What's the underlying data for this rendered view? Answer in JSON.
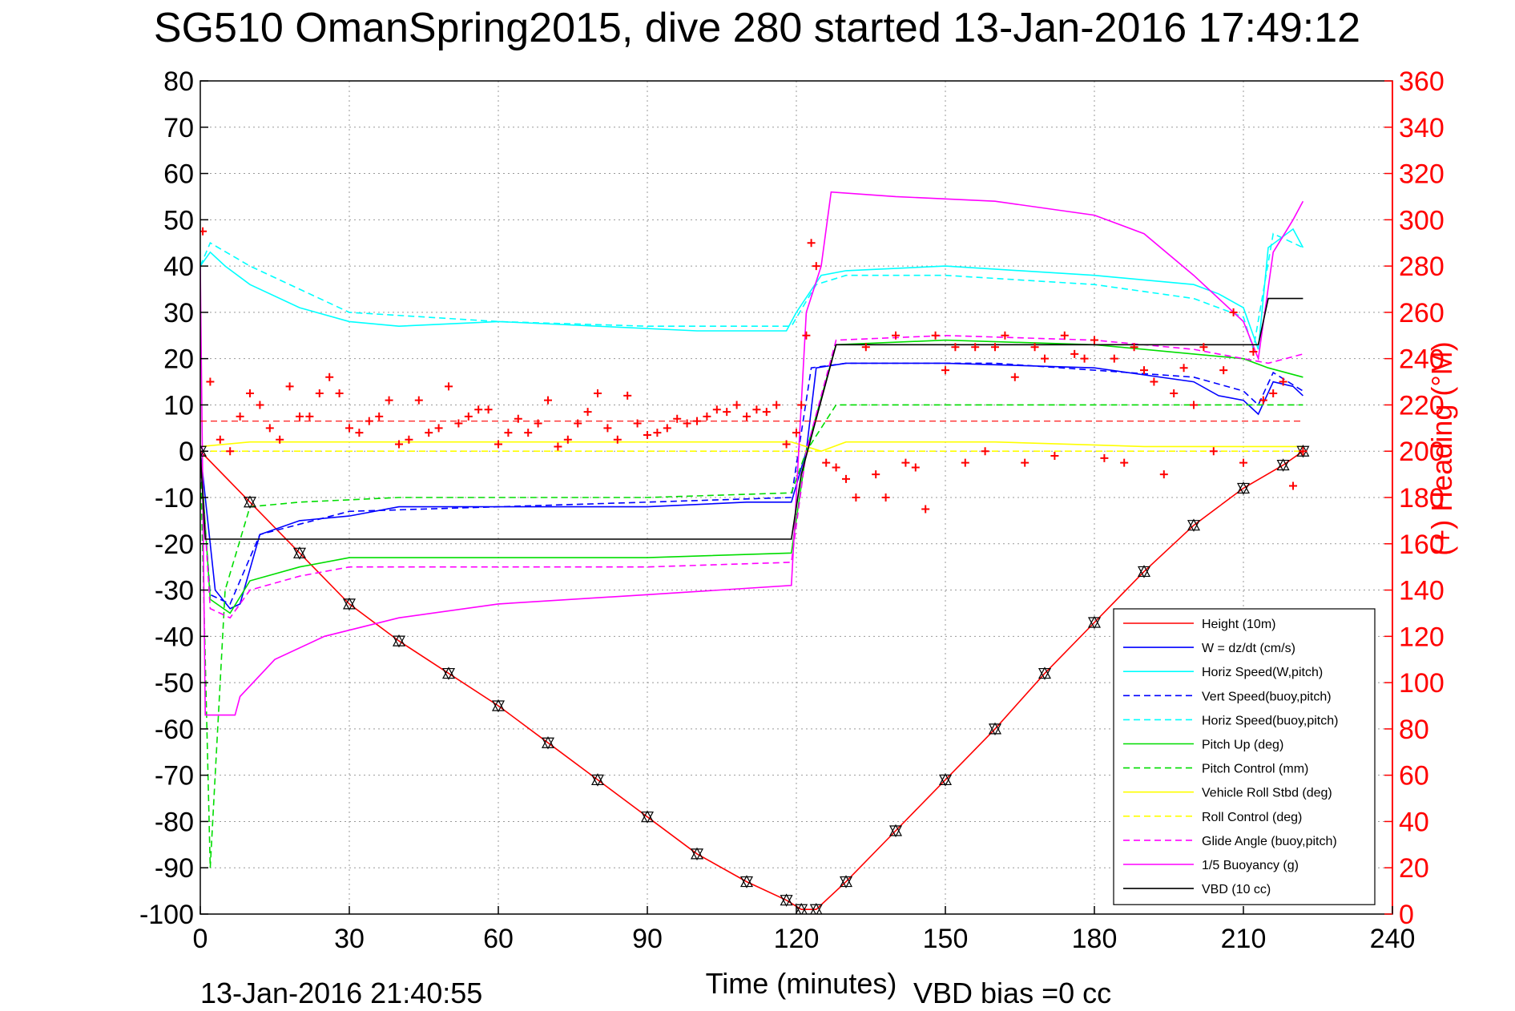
{
  "figure": {
    "title": "SG510 OmanSpring2015, dive 280 started 13-Jan-2016 17:49:12",
    "timestamp": "13-Jan-2016 21:40:55",
    "vbd_bias": "VBD bias =0 cc"
  },
  "chart_data": {
    "type": "line",
    "title": "SG510 OmanSpring2015, dive 280 started 13-Jan-2016 17:49:12",
    "xlabel": "Time (minutes)",
    "ylabel": "",
    "y2label": "(+) Heading (°M)",
    "xlim": [
      0,
      240
    ],
    "ylim": [
      -100,
      80
    ],
    "y2lim": [
      0,
      360
    ],
    "grid": true,
    "legend_position": "bottom-right",
    "x_ticks": [
      0,
      30,
      60,
      90,
      120,
      150,
      180,
      210,
      240
    ],
    "y_ticks": [
      80,
      70,
      60,
      50,
      40,
      30,
      20,
      10,
      0,
      -10,
      -20,
      -30,
      -40,
      -50,
      -60,
      -70,
      -80,
      -90,
      -100
    ],
    "y2_ticks": [
      360,
      340,
      320,
      300,
      280,
      260,
      240,
      220,
      200,
      180,
      160,
      140,
      120,
      100,
      80,
      60,
      40,
      20,
      0
    ],
    "series": [
      {
        "name": "Height (10m)",
        "color": "#ff0000",
        "style": "solid",
        "axis": "left",
        "x": [
          0,
          10,
          20,
          30,
          40,
          50,
          60,
          70,
          80,
          90,
          100,
          110,
          118,
          121,
          124,
          130,
          140,
          150,
          160,
          170,
          180,
          190,
          200,
          210,
          218,
          222
        ],
        "y": [
          0,
          -11,
          -22,
          -33,
          -41,
          -48,
          -55,
          -63,
          -71,
          -79,
          -87,
          -93,
          -97,
          -99,
          -99,
          -93,
          -82,
          -71,
          -60,
          -48,
          -37,
          -26,
          -16,
          -8,
          -3,
          0
        ]
      },
      {
        "name": "W = dz/dt (cm/s)",
        "color": "#0000ff",
        "style": "solid",
        "axis": "left",
        "x": [
          0,
          1,
          3,
          6,
          8,
          12,
          20,
          30,
          40,
          60,
          90,
          110,
          119,
          122,
          124,
          130,
          150,
          180,
          200,
          205,
          210,
          213,
          216,
          220,
          222
        ],
        "y": [
          0,
          -10,
          -30,
          -34,
          -33,
          -18,
          -15,
          -14,
          -12,
          -12,
          -12,
          -11,
          -11,
          0,
          18,
          19,
          19,
          18,
          15,
          12,
          11,
          8,
          15,
          14,
          12
        ]
      },
      {
        "name": "Horiz Speed(W,pitch)",
        "color": "#00ffff",
        "style": "solid",
        "axis": "left",
        "x": [
          0,
          2,
          5,
          10,
          20,
          30,
          40,
          60,
          80,
          100,
          118,
          120,
          125,
          130,
          150,
          180,
          200,
          205,
          210,
          213,
          215,
          220,
          222
        ],
        "y": [
          40,
          43,
          40,
          36,
          31,
          28,
          27,
          28,
          27,
          26,
          26,
          30,
          38,
          39,
          40,
          38,
          36,
          34,
          31,
          22,
          44,
          48,
          44
        ]
      },
      {
        "name": "Vert Speed(buoy,pitch)",
        "color": "#0000ff",
        "style": "dashed",
        "axis": "left",
        "x": [
          0,
          2,
          6,
          12,
          30,
          60,
          90,
          119,
          123,
          130,
          160,
          200,
          210,
          213,
          216,
          222
        ],
        "y": [
          -2,
          -31,
          -33,
          -18,
          -13,
          -12,
          -11,
          -10,
          18,
          19,
          19,
          16,
          13,
          10,
          17,
          13
        ]
      },
      {
        "name": "Horiz Speed(buoy,pitch)",
        "color": "#00ffff",
        "style": "dashed",
        "axis": "left",
        "x": [
          0,
          2,
          10,
          20,
          30,
          60,
          90,
          119,
          124,
          130,
          150,
          180,
          200,
          210,
          212,
          216,
          222
        ],
        "y": [
          40,
          45,
          40,
          35,
          30,
          28,
          27,
          27,
          36,
          38,
          38,
          36,
          33,
          29,
          22,
          47,
          44
        ]
      },
      {
        "name": "Pitch Up (deg)",
        "color": "#00dd00",
        "style": "solid",
        "axis": "left",
        "x": [
          0,
          2,
          6,
          10,
          20,
          30,
          60,
          90,
          119,
          122,
          128,
          150,
          180,
          200,
          210,
          215,
          222
        ],
        "y": [
          0,
          -32,
          -35,
          -28,
          -25,
          -23,
          -23,
          -23,
          -22,
          0,
          23,
          24,
          23,
          21,
          20,
          18,
          16
        ]
      },
      {
        "name": "Pitch Control (mm)",
        "color": "#00dd00",
        "style": "dashed",
        "axis": "left",
        "x": [
          0,
          2,
          5,
          10,
          20,
          40,
          60,
          90,
          119,
          122,
          128,
          150,
          180,
          200,
          212,
          222
        ],
        "y": [
          0,
          -90,
          -30,
          -12,
          -11,
          -10,
          -10,
          -10,
          -9,
          0,
          10,
          10,
          10,
          10,
          10,
          10
        ]
      },
      {
        "name": "Vehicle Roll Stbd (deg)",
        "color": "#ffff00",
        "style": "solid",
        "axis": "left",
        "x": [
          0,
          10,
          30,
          60,
          90,
          119,
          125,
          130,
          160,
          190,
          210,
          222
        ],
        "y": [
          1,
          2,
          2,
          2,
          2,
          2,
          0,
          2,
          2,
          1,
          1,
          1
        ]
      },
      {
        "name": "Roll Control (deg)",
        "color": "#ffff00",
        "style": "dashed",
        "axis": "left",
        "x": [
          0,
          10,
          30,
          60,
          90,
          119,
          125,
          130,
          160,
          190,
          210,
          222
        ],
        "y": [
          0,
          0,
          0,
          0,
          0,
          0,
          0,
          0,
          0,
          0,
          0,
          0
        ]
      },
      {
        "name": "Glide Angle (buoy,pitch)",
        "color": "#ff00ff",
        "style": "dashed",
        "axis": "left",
        "x": [
          0,
          2,
          6,
          10,
          20,
          30,
          60,
          90,
          119,
          122,
          128,
          150,
          180,
          200,
          210,
          215,
          222
        ],
        "y": [
          0,
          -34,
          -36,
          -30,
          -27,
          -25,
          -25,
          -25,
          -24,
          0,
          24,
          25,
          24,
          22,
          20,
          19,
          21
        ]
      },
      {
        "name": "1/5 Buoyancy (g)",
        "color": "#ff00ff",
        "style": "solid",
        "axis": "left",
        "x": [
          0,
          1,
          5,
          7,
          8,
          15,
          25,
          40,
          60,
          90,
          119,
          122,
          125,
          127,
          140,
          160,
          180,
          190,
          200,
          210,
          213,
          216,
          220,
          222
        ],
        "y": [
          40,
          -57,
          -57,
          -57,
          -53,
          -45,
          -40,
          -36,
          -33,
          -31,
          -29,
          30,
          40,
          56,
          55,
          54,
          51,
          47,
          38,
          28,
          20,
          43,
          50,
          54
        ]
      },
      {
        "name": "VBD (10 cc)",
        "color": "#000000",
        "style": "solid",
        "axis": "left",
        "x": [
          0,
          1,
          3,
          119,
          121,
          128,
          180,
          212,
          213,
          215,
          220,
          222
        ],
        "y": [
          0,
          -19,
          -19,
          -19,
          -5,
          23,
          23,
          23,
          23,
          33,
          33,
          33
        ]
      }
    ],
    "heading_series": {
      "name": "(+) Heading",
      "color": "#ff0000",
      "marker": "+",
      "axis": "right",
      "x": [
        0.5,
        2,
        4,
        6,
        8,
        10,
        12,
        14,
        16,
        18,
        20,
        22,
        24,
        26,
        28,
        30,
        32,
        34,
        36,
        38,
        40,
        42,
        44,
        46,
        48,
        50,
        52,
        54,
        56,
        58,
        60,
        62,
        64,
        66,
        68,
        70,
        72,
        74,
        76,
        78,
        80,
        82,
        84,
        86,
        88,
        90,
        92,
        94,
        96,
        98,
        100,
        102,
        104,
        106,
        108,
        110,
        112,
        114,
        116,
        118,
        120,
        121,
        122,
        123,
        124,
        126,
        128,
        130,
        132,
        134,
        136,
        138,
        140,
        142,
        144,
        146,
        148,
        150,
        152,
        154,
        156,
        158,
        160,
        162,
        164,
        166,
        168,
        170,
        172,
        174,
        176,
        178,
        180,
        182,
        184,
        186,
        188,
        190,
        192,
        194,
        196,
        198,
        200,
        202,
        204,
        206,
        208,
        210,
        212,
        214,
        216,
        218,
        220,
        222
      ],
      "y": [
        295,
        230,
        205,
        200,
        215,
        225,
        220,
        210,
        205,
        228,
        215,
        215,
        225,
        232,
        225,
        210,
        208,
        213,
        215,
        222,
        203,
        205,
        222,
        208,
        210,
        228,
        212,
        215,
        218,
        218,
        203,
        208,
        214,
        208,
        212,
        222,
        202,
        205,
        212,
        217,
        225,
        210,
        205,
        224,
        212,
        207,
        208,
        210,
        214,
        212,
        213,
        215,
        218,
        217,
        220,
        215,
        218,
        217,
        220,
        203,
        208,
        220,
        250,
        290,
        280,
        195,
        193,
        188,
        180,
        245,
        190,
        180,
        250,
        195,
        193,
        175,
        250,
        235,
        245,
        195,
        245,
        200,
        245,
        250,
        232,
        195,
        245,
        240,
        198,
        250,
        242,
        240,
        248,
        197,
        240,
        195,
        245,
        235,
        230,
        190,
        225,
        236,
        220,
        245,
        200,
        235,
        260,
        195,
        243,
        222,
        225,
        230,
        185,
        200
      ]
    }
  }
}
